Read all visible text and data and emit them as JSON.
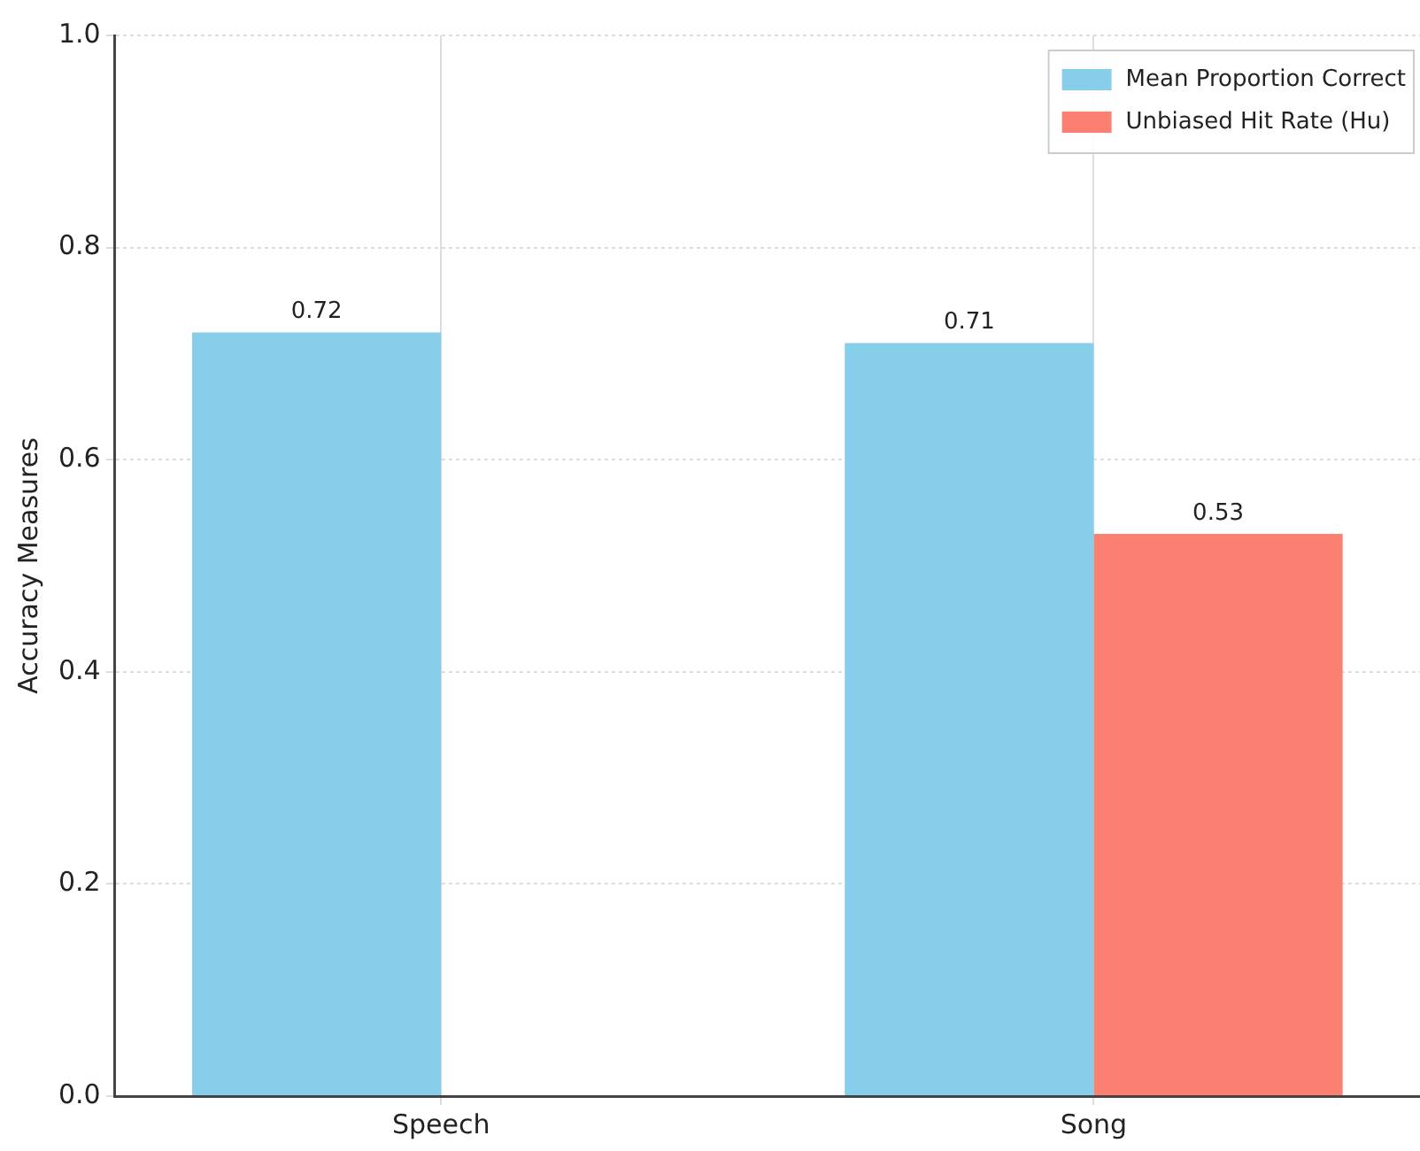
{
  "chart_data": {
    "type": "bar",
    "ylabel": "Accuracy Measures",
    "categories": [
      "Speech",
      "Song"
    ],
    "series": [
      {
        "name": "Mean Proportion Correct",
        "color": "#87ceeb",
        "values": [
          0.72,
          0.71
        ]
      },
      {
        "name": "Unbiased Hit Rate (Hu)",
        "color": "#fa8072",
        "values": [
          null,
          0.53
        ]
      }
    ],
    "ylim": [
      0,
      1
    ],
    "yticks": [
      {
        "value": 0,
        "label": "0.0"
      },
      0.2,
      0.4,
      0.6,
      0.8,
      {
        "value": 1,
        "label": "1.0"
      }
    ],
    "grid": true,
    "legend": "top right",
    "data_labels": true
  }
}
